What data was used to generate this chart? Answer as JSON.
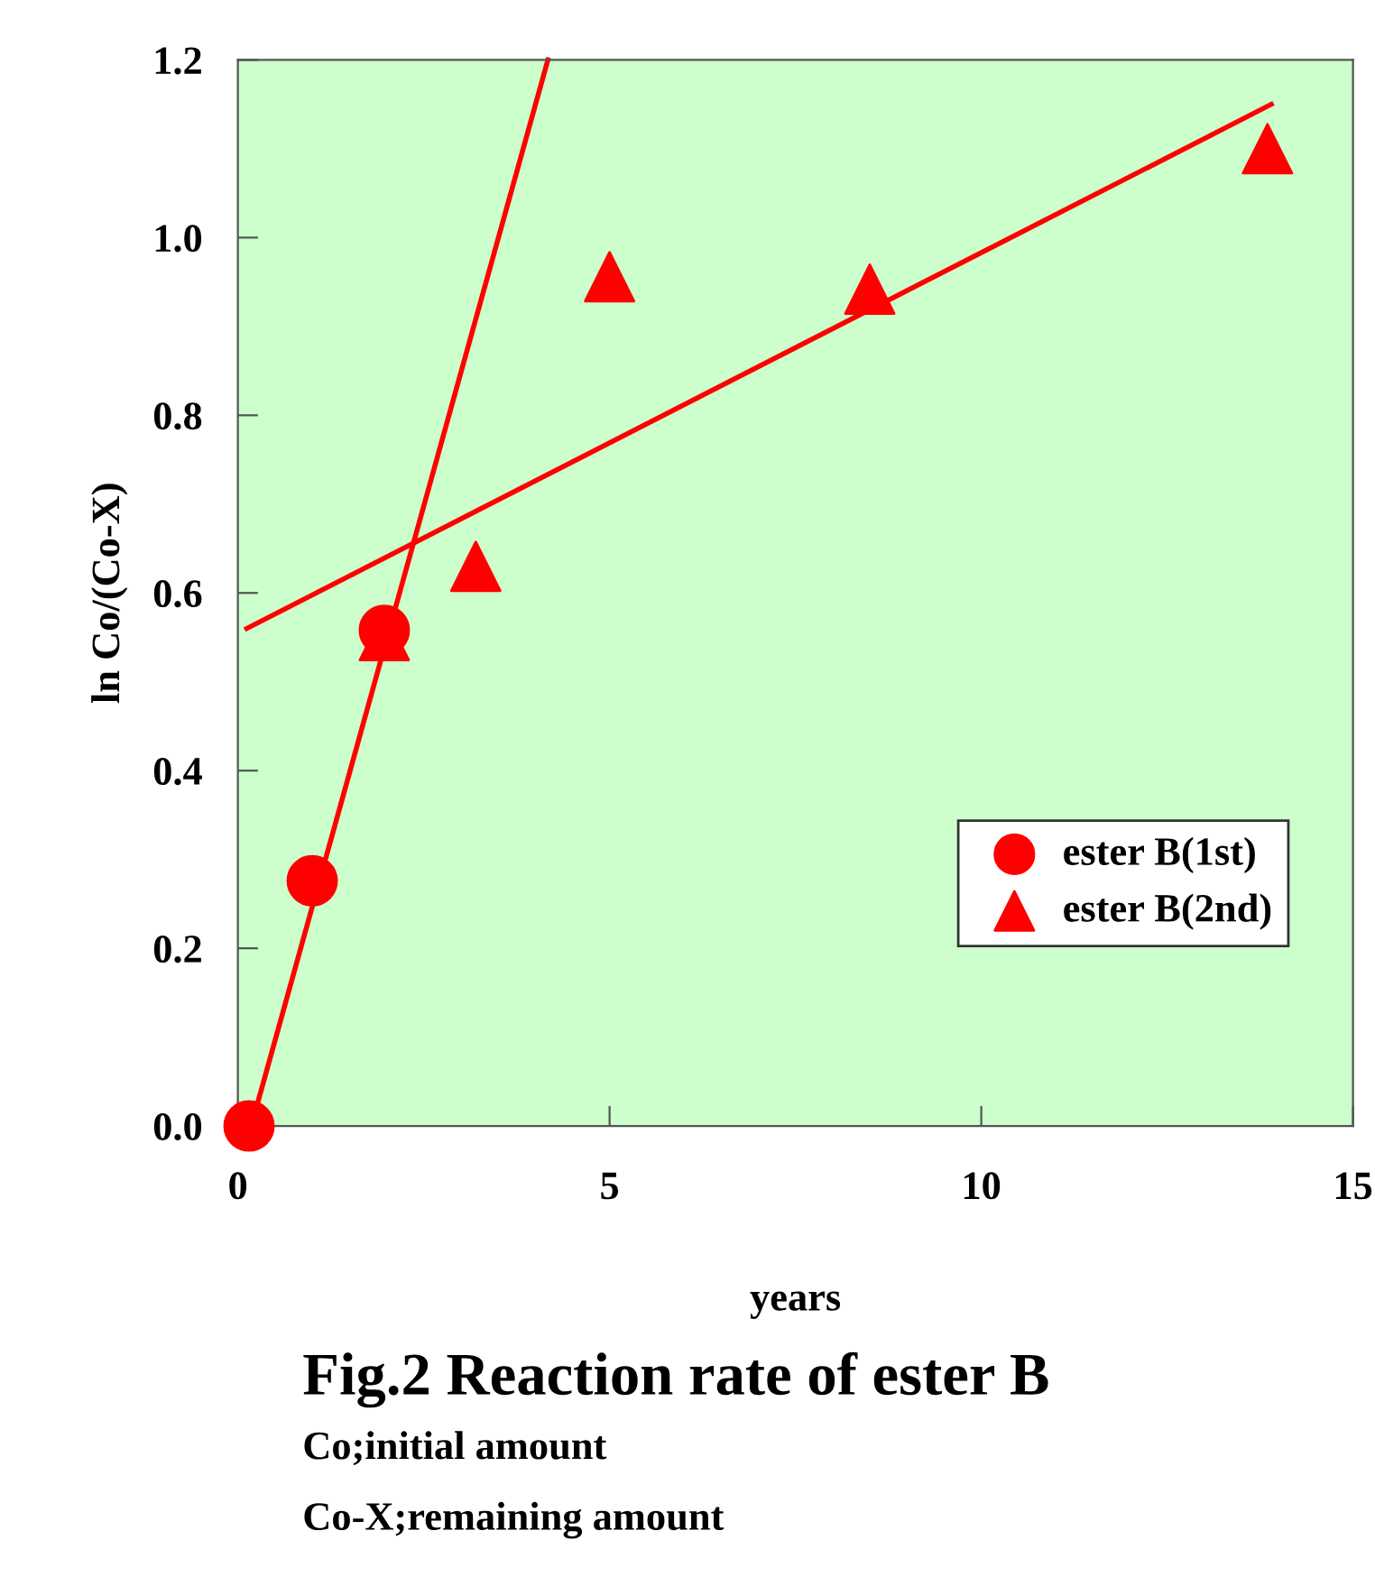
{
  "chart_data": {
    "type": "scatter",
    "xlabel": "years",
    "ylabel": "ln Co/(Co-X)",
    "annotations": [
      "Fig.2 Reaction rate of ester B",
      "Co;initial amount",
      "Co-X;remaining amount"
    ],
    "xlim": [
      0,
      15
    ],
    "xticks": [
      0,
      5,
      10,
      15
    ],
    "ylim": [
      0,
      1.2
    ],
    "yticks": [
      {
        "value": 0,
        "label": "0.0"
      },
      {
        "value": 0.2,
        "label": "0.2"
      },
      {
        "value": 0.4,
        "label": "0.4"
      },
      {
        "value": 0.6,
        "label": "0.6"
      },
      {
        "value": 0.8,
        "label": "0.8"
      },
      {
        "value": 1.0,
        "label": "1.0"
      },
      {
        "value": 1.2,
        "label": "1.2"
      }
    ],
    "grid": false,
    "legend": "bottom right",
    "series": [
      {
        "type": "line",
        "color": "#ff0000",
        "marker": "none",
        "line_style": "solid",
        "x": [
          0.18,
          4.17
        ],
        "values": [
          0,
          1.2
        ]
      },
      {
        "type": "line",
        "color": "#ff0000",
        "marker": "none",
        "line_style": "solid",
        "x": [
          0.12,
          13.9
        ],
        "values": [
          0.56,
          1.15
        ]
      },
      {
        "name": "ester B(1st)",
        "color": "#ff0000",
        "marker": "circle",
        "x": [
          0.15,
          1.0,
          1.97
        ],
        "values": [
          0,
          0.276,
          0.558
        ]
      },
      {
        "name": "ester B(2nd)",
        "color": "#ff0000",
        "marker": "triangle",
        "x": [
          1.97,
          3.2,
          5.0,
          8.5,
          13.85
        ],
        "values": [
          0.552,
          0.63,
          0.956,
          0.942,
          1.1
        ]
      }
    ]
  }
}
